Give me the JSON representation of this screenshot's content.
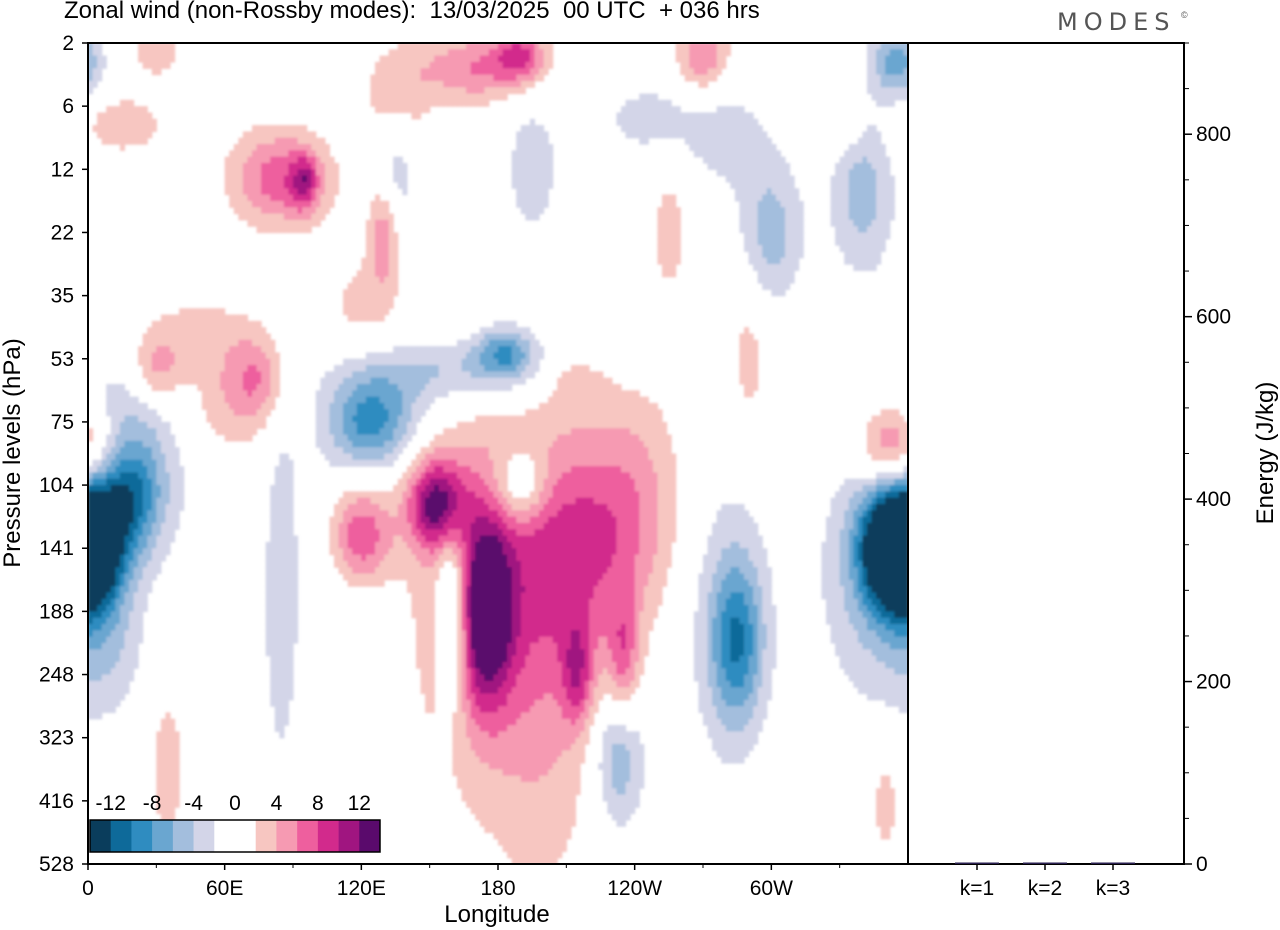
{
  "title": "Zonal wind (non-Rossby modes):  13/03/2025  00 UTC  + 036 hrs",
  "logo": "MODES",
  "logo_mark": "©",
  "chart_data": [
    {
      "type": "heatmap",
      "xlabel": "Longitude",
      "ylabel": "Pressure levels (hPa)",
      "x_ticks": [
        "0",
        "60E",
        "120E",
        "180",
        "120W",
        "60W"
      ],
      "x_tick_values": [
        0,
        60,
        120,
        180,
        240,
        300
      ],
      "xlim": [
        0,
        360
      ],
      "y_ticks": [
        "2",
        "6",
        "12",
        "22",
        "35",
        "53",
        "75",
        "104",
        "141",
        "188",
        "248",
        "323",
        "416",
        "528"
      ],
      "colorbar": {
        "labels": [
          "-12",
          "-8",
          "-4",
          "0",
          "4",
          "8",
          "12"
        ],
        "colors": [
          "#0a3d5c",
          "#0e6a9a",
          "#2f8cc0",
          "#6aa6d0",
          "#a3bedd",
          "#d3d5e8",
          "#ffffff",
          "#ffffff",
          "#f7c6c1",
          "#f69ab2",
          "#ee5f9e",
          "#d22a8c",
          "#a01580",
          "#5a0a6c"
        ]
      },
      "blobs": [
        {
          "x": 2,
          "lev": 8.0,
          "v": -13,
          "sx": 10,
          "sl": 0.7
        },
        {
          "x": 18,
          "lev": 7.1,
          "v": -8,
          "sx": 10,
          "sl": 0.7
        },
        {
          "x": 20,
          "lev": 6.4,
          "v": -4,
          "sx": 18,
          "sl": 1.2
        },
        {
          "x": 8,
          "lev": 9.6,
          "v": -3,
          "sx": 12,
          "sl": 0.8
        },
        {
          "x": 5,
          "lev": 6.5,
          "v": 4,
          "sx": 14,
          "sl": 0.5
        },
        {
          "x": 30,
          "lev": 5.2,
          "v": 5,
          "sx": 8,
          "sl": 0.4
        },
        {
          "x": 45,
          "lev": 4.6,
          "v": 3,
          "sx": 20,
          "sl": 0.5
        },
        {
          "x": 15,
          "lev": 1.3,
          "v": 4,
          "sx": 12,
          "sl": 0.3
        },
        {
          "x": 30,
          "lev": 0.1,
          "v": 3,
          "sx": 10,
          "sl": 0.4
        },
        {
          "x": 80,
          "lev": 2.1,
          "v": 4,
          "sx": 15,
          "sl": 0.6
        },
        {
          "x": 75,
          "lev": 5.3,
          "v": 5,
          "sx": 10,
          "sl": 0.5
        },
        {
          "x": 60,
          "lev": 5.8,
          "v": 3,
          "sx": 14,
          "sl": 0.6
        },
        {
          "x": 85,
          "lev": 8.5,
          "v": -3,
          "sx": 6,
          "sl": 2.5
        },
        {
          "x": 60,
          "lev": 10.0,
          "v": -2,
          "sx": 10,
          "sl": 1.8
        },
        {
          "x": 125,
          "lev": 6.0,
          "v": -8,
          "sx": 14,
          "sl": 0.5
        },
        {
          "x": 160,
          "lev": 5.2,
          "v": -5,
          "sx": 30,
          "sl": 0.4
        },
        {
          "x": 183,
          "lev": 4.9,
          "v": -7,
          "sx": 9,
          "sl": 0.3
        },
        {
          "x": 120,
          "lev": 8.0,
          "v": -2,
          "sx": 16,
          "sl": 2.2
        },
        {
          "x": 120,
          "lev": 7.8,
          "v": 9,
          "sx": 10,
          "sl": 0.6
        },
        {
          "x": 153,
          "lev": 7.3,
          "v": 11,
          "sx": 9,
          "sl": 0.5
        },
        {
          "x": 175,
          "lev": 9.0,
          "v": 12,
          "sx": 8,
          "sl": 1.0
        },
        {
          "x": 168,
          "lev": 8.6,
          "v": 5,
          "sx": 22,
          "sl": 2.2
        },
        {
          "x": 200,
          "lev": 10.0,
          "v": 4,
          "sx": 18,
          "sl": 2.5
        },
        {
          "x": 215,
          "lev": 8.0,
          "v": 6,
          "sx": 20,
          "sl": 1.2
        },
        {
          "x": 240,
          "lev": 7.2,
          "v": 4,
          "sx": 16,
          "sl": 1.3
        },
        {
          "x": 190,
          "lev": 7.0,
          "v": -6,
          "sx": 8,
          "sl": 0.4
        },
        {
          "x": 160,
          "lev": 9.0,
          "v": -8,
          "sx": 5,
          "sl": 1.0
        },
        {
          "x": 235,
          "lev": 9.8,
          "v": 6,
          "sx": 5,
          "sl": 0.7
        },
        {
          "x": 215,
          "lev": 10.0,
          "v": 6,
          "sx": 5,
          "sl": 0.6
        },
        {
          "x": 285,
          "lev": 9.5,
          "v": -8,
          "sx": 8,
          "sl": 0.9
        },
        {
          "x": 280,
          "lev": 9.0,
          "v": -3,
          "sx": 14,
          "sl": 1.8
        },
        {
          "x": 233,
          "lev": 11.3,
          "v": -6,
          "sx": 8,
          "sl": 0.8
        },
        {
          "x": 352,
          "lev": 8.0,
          "v": -13,
          "sx": 10,
          "sl": 0.7
        },
        {
          "x": 345,
          "lev": 8.5,
          "v": -4,
          "sx": 18,
          "sl": 1.5
        },
        {
          "x": 352,
          "lev": 6.4,
          "v": 6,
          "sx": 10,
          "sl": 0.5
        },
        {
          "x": 350,
          "lev": 12.0,
          "v": 3,
          "sx": 5,
          "sl": 0.7
        },
        {
          "x": 35,
          "lev": 11.5,
          "v": 4,
          "sx": 5,
          "sl": 0.8
        },
        {
          "x": 170,
          "lev": 0.4,
          "v": 6,
          "sx": 18,
          "sl": 0.4
        },
        {
          "x": 190,
          "lev": 0.2,
          "v": 7,
          "sx": 8,
          "sl": 0.3
        },
        {
          "x": 270,
          "lev": 0.2,
          "v": 6,
          "sx": 8,
          "sl": 0.4
        },
        {
          "x": 355,
          "lev": 0.3,
          "v": -7,
          "sx": 8,
          "sl": 0.4
        },
        {
          "x": 135,
          "lev": 0.9,
          "v": 4,
          "sx": 10,
          "sl": 0.6
        },
        {
          "x": 90,
          "lev": 2.2,
          "v": 4,
          "sx": 14,
          "sl": 0.5
        },
        {
          "x": 95,
          "lev": 2.2,
          "v": 6,
          "sx": 4,
          "sl": 0.3
        },
        {
          "x": 130,
          "lev": 3.0,
          "v": 6,
          "sx": 5,
          "sl": 0.6
        },
        {
          "x": 120,
          "lev": 4.2,
          "v": 3,
          "sx": 12,
          "sl": 0.6
        },
        {
          "x": 210,
          "lev": 4.3,
          "v": 3,
          "sx": 10,
          "sl": 0.3
        },
        {
          "x": 215,
          "lev": 5.3,
          "v": 3,
          "sx": 10,
          "sl": 0.4
        },
        {
          "x": 225,
          "lev": 4.6,
          "v": -3,
          "sx": 20,
          "sl": 0.4
        },
        {
          "x": 255,
          "lev": 3.0,
          "v": 3,
          "sx": 6,
          "sl": 0.8
        },
        {
          "x": 290,
          "lev": 5.0,
          "v": 3,
          "sx": 6,
          "sl": 0.9
        },
        {
          "x": 280,
          "lev": 1.5,
          "v": -3,
          "sx": 14,
          "sl": 0.6
        },
        {
          "x": 300,
          "lev": 3.0,
          "v": -5,
          "sx": 10,
          "sl": 0.8
        },
        {
          "x": 340,
          "lev": 2.4,
          "v": -5,
          "sx": 10,
          "sl": 0.9
        },
        {
          "x": 135,
          "lev": 2.0,
          "v": -4,
          "sx": 6,
          "sl": 0.8
        },
        {
          "x": 195,
          "lev": 2.0,
          "v": -3,
          "sx": 10,
          "sl": 1.0
        },
        {
          "x": 245,
          "lev": 1.2,
          "v": -3,
          "sx": 14,
          "sl": 0.4
        },
        {
          "x": 330,
          "lev": 1.3,
          "v": 3,
          "sx": 6,
          "sl": 0.3
        }
      ]
    },
    {
      "type": "bar",
      "categories": [
        "k=1",
        "k=2",
        "k=3"
      ],
      "values": [
        1.6,
        0.8,
        0.4
      ],
      "ylabel": "Energy (J/kg)",
      "ylim": [
        0,
        900
      ],
      "y_ticks": [
        0,
        200,
        400,
        600,
        800
      ]
    }
  ]
}
